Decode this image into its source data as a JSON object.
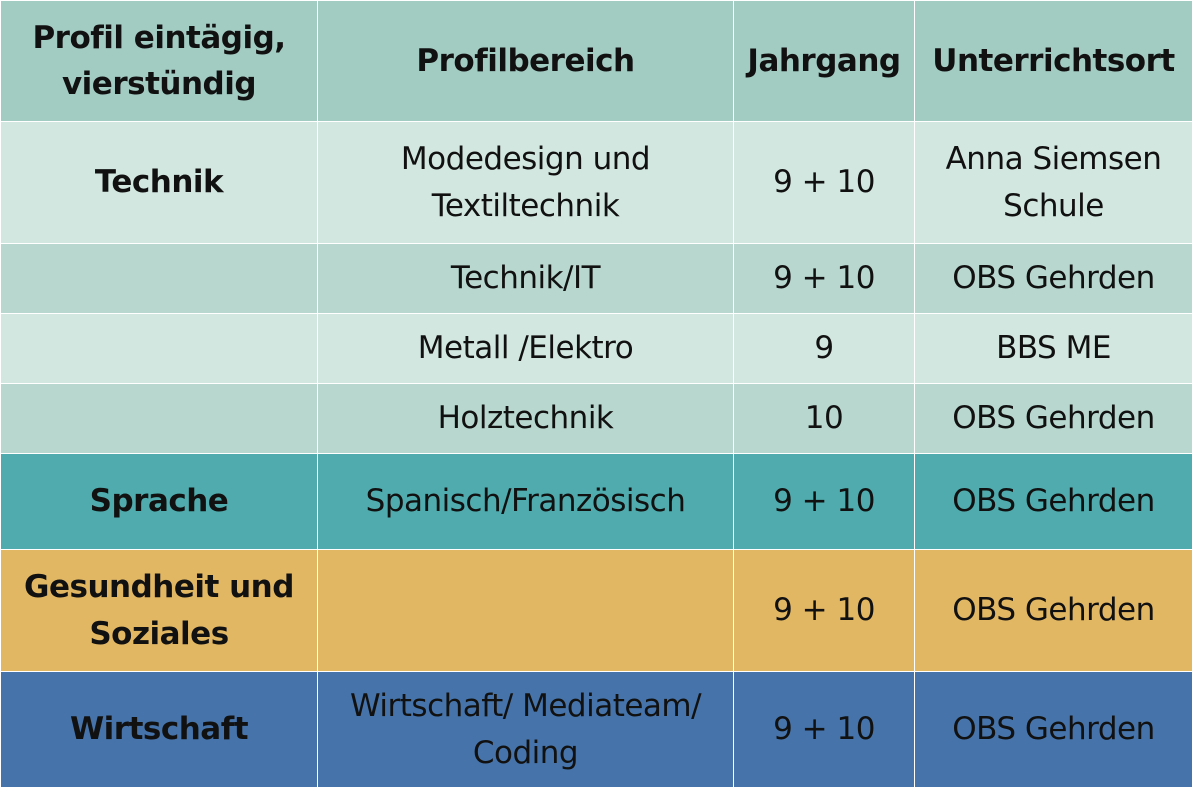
{
  "headers": {
    "profil_line1": "Profil eintägig,",
    "profil_line2": "vierstündig",
    "profilbereich": "Profilbereich",
    "jahrgang": "Jahrgang",
    "unterrichtsort": "Unterrichtsort"
  },
  "rows": [
    {
      "profil": "Technik",
      "bereich_line1": "Modedesign und",
      "bereich_line2": "Textiltechnik",
      "jahrgang": "9 + 10",
      "ort_line1": "Anna Siemsen",
      "ort_line2": "Schule"
    },
    {
      "profil": "",
      "bereich": "Technik/IT",
      "jahrgang": "9 + 10",
      "ort": "OBS Gehrden"
    },
    {
      "profil": "",
      "bereich": "Metall /Elektro",
      "jahrgang": "9",
      "ort": "BBS ME"
    },
    {
      "profil": "",
      "bereich": "Holztechnik",
      "jahrgang": "10",
      "ort": "OBS Gehrden"
    },
    {
      "profil": "Sprache",
      "bereich": "Spanisch/Französisch",
      "jahrgang": "9 + 10",
      "ort": "OBS Gehrden"
    },
    {
      "profil_line1": "Gesundheit und",
      "profil_line2": "Soziales",
      "bereich": "",
      "jahrgang": "9 + 10",
      "ort": "OBS Gehrden"
    },
    {
      "profil": "Wirtschaft",
      "bereich_line1": "Wirtschaft/ Mediateam/",
      "bereich_line2": "Coding",
      "jahrgang": "9 + 10",
      "ort": "OBS Gehrden"
    }
  ],
  "colors": {
    "header": "#a2cbc2",
    "light": "#d3e7e1",
    "mid": "#b8d7cf",
    "sprache": "#4fabad",
    "gesundheit": "#e2b764",
    "wirtschaft": "#4674aa"
  }
}
